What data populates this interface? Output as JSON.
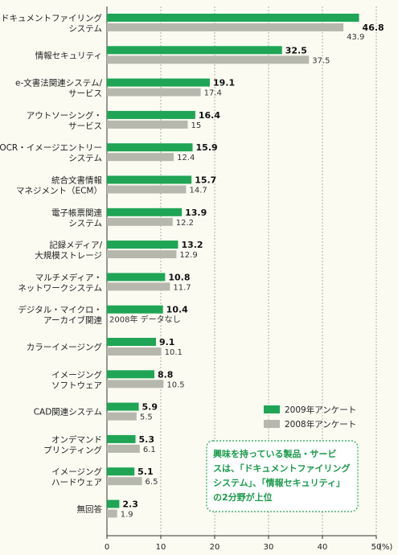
{
  "chart_data": {
    "type": "bar",
    "orientation": "horizontal",
    "categories": [
      [
        "ドキュメントファイリング",
        "システム"
      ],
      [
        "情報セキュリティ"
      ],
      [
        "e-文書法関連システム/",
        "サービス"
      ],
      [
        "アウトソーシング・",
        "サービス"
      ],
      [
        "OCR・イメージエントリー",
        "システム"
      ],
      [
        "統合文書情報",
        "マネジメント（ECM）"
      ],
      [
        "電子帳票関連",
        "システム"
      ],
      [
        "記録メディア/",
        "大規模ストレージ"
      ],
      [
        "マルチメディア・",
        "ネットワークシステム"
      ],
      [
        "デジタル・マイクロ・",
        "アーカイブ関連"
      ],
      [
        "カラーイメージング"
      ],
      [
        "イメージング",
        "ソフトウェア"
      ],
      [
        "CAD関連システム"
      ],
      [
        "オンデマンド",
        "プリンティング"
      ],
      [
        "イメージング",
        "ハードウェア"
      ],
      [
        "無回答"
      ]
    ],
    "series": [
      {
        "name": "2009年アンケート",
        "color": "#1fa555",
        "values": [
          46.8,
          32.5,
          19.1,
          16.4,
          15.9,
          15.7,
          13.9,
          13.2,
          10.8,
          10.4,
          9.1,
          8.8,
          5.9,
          5.3,
          5.1,
          2.3
        ]
      },
      {
        "name": "2008年アンケート",
        "color": "#b7b8ad",
        "values": [
          43.9,
          37.5,
          17.4,
          15.0,
          12.4,
          14.7,
          12.2,
          12.9,
          11.7,
          null,
          10.1,
          10.5,
          5.5,
          6.1,
          6.5,
          1.9
        ]
      }
    ],
    "no_data_label": "2008年 データなし",
    "xlim": [
      0,
      50
    ],
    "xticks": [
      "0",
      "10",
      "20",
      "30",
      "40",
      "50"
    ],
    "x_unit": "(%)",
    "grid": "vertical-dashed",
    "legend": "bottom-right",
    "annotation": {
      "lines": [
        "興味を持っている製品・サービ",
        "スは、「ドキュメントファイリング",
        "システム」、「情報セキュリティ」",
        "の2分野が上位"
      ],
      "border_color": "#1fa555",
      "text_color": "#1a9a4a"
    }
  }
}
